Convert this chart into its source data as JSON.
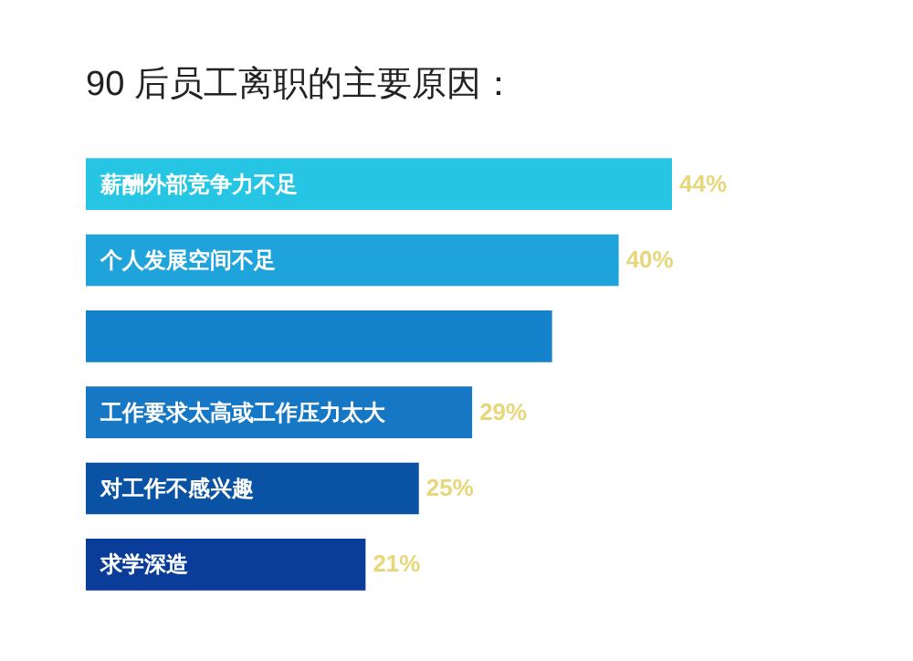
{
  "chart_data": {
    "type": "bar",
    "orientation": "horizontal",
    "title": "90 后员工离职的主要原因：",
    "categories": [
      "薪酬外部竞争力不足",
      "个人发展空间不足",
      null,
      "工作要求太高或工作压力太大",
      "对工作不感兴趣",
      "求学深造"
    ],
    "values": [
      44,
      40,
      35,
      29,
      25,
      21
    ],
    "colors": [
      "#26c5e3",
      "#1ea3da",
      "#1583cc",
      "#1677c4",
      "#0a52a3",
      "#0a3d99"
    ],
    "value_labels": [
      "44%",
      "40%",
      null,
      "29%",
      "25%",
      "21%"
    ]
  }
}
